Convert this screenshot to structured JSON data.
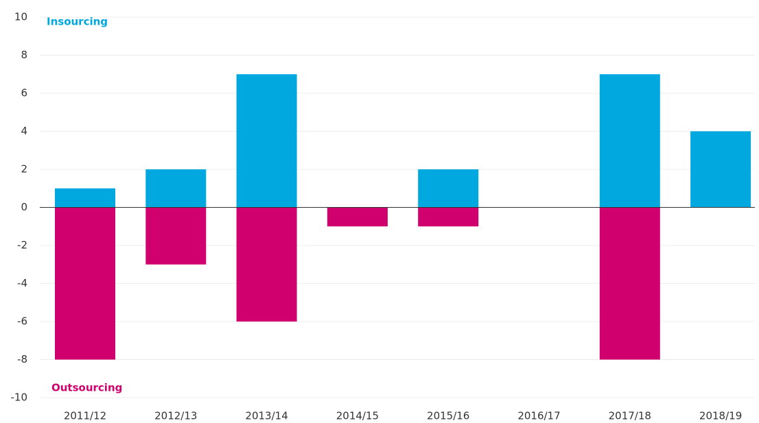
{
  "chart_data": {
    "type": "bar",
    "categories": [
      "2011/12",
      "2012/13",
      "2013/14",
      "2014/15",
      "2015/16",
      "2016/17",
      "2017/18",
      "2018/19"
    ],
    "series": [
      {
        "name": "Insourcing",
        "color": "#00a8e0",
        "values": [
          1,
          2,
          7,
          0,
          2,
          0,
          7,
          4
        ]
      },
      {
        "name": "Outsourcing",
        "color": "#d0006f",
        "values": [
          -8,
          -3,
          -6,
          -1,
          -1,
          0,
          -8,
          0
        ]
      }
    ],
    "ylim": [
      -10,
      10
    ],
    "yticks": [
      -10,
      -8,
      -6,
      -4,
      -2,
      0,
      2,
      4,
      6,
      8,
      10
    ],
    "grid": true
  }
}
